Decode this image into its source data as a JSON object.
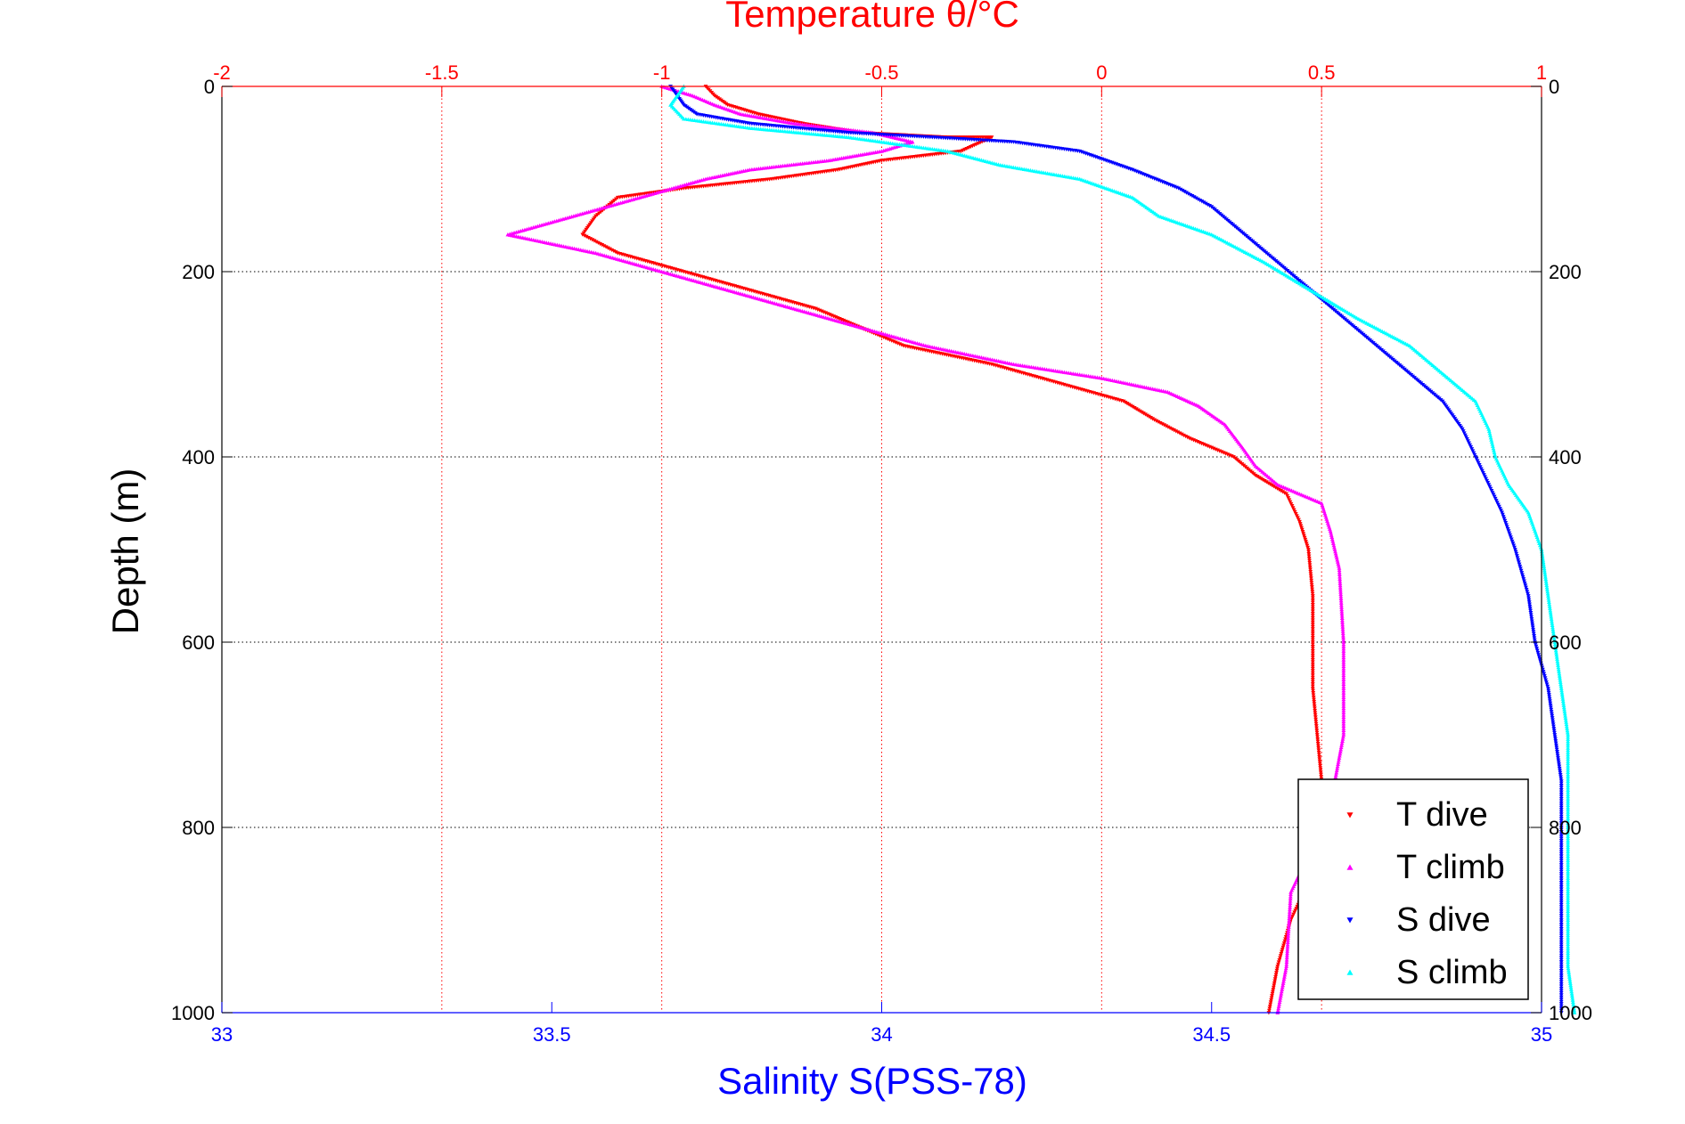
{
  "chart_data": {
    "type": "scatter",
    "top_axis": {
      "label": "Temperature θ/°C",
      "range": [
        -2,
        1
      ],
      "ticks": [
        "-2",
        "-1.5",
        "-1",
        "-0.5",
        "0",
        "0.5",
        "1"
      ],
      "color": "#ff0000"
    },
    "bottom_axis": {
      "label": "Salinity S(PSS-78)",
      "range": [
        33,
        35
      ],
      "ticks": [
        "33",
        "33.5",
        "34",
        "34.5",
        "35"
      ],
      "color": "#0000ff"
    },
    "y_axis": {
      "label": "Depth (m)",
      "range": [
        0,
        1000
      ],
      "reversed": true,
      "ticks": [
        "0",
        "200",
        "400",
        "600",
        "800",
        "1000"
      ],
      "color": "#000000"
    },
    "grid": true,
    "legend": {
      "position": "bottom-right",
      "entries": [
        "T dive",
        "T climb",
        "S dive",
        "S climb"
      ]
    },
    "series": [
      {
        "name": "T dive",
        "axis": "top",
        "color": "#ff0000",
        "marker": "triangle-down",
        "points": [
          [
            -0.9,
            0
          ],
          [
            -0.88,
            10
          ],
          [
            -0.85,
            20
          ],
          [
            -0.78,
            30
          ],
          [
            -0.68,
            40
          ],
          [
            -0.55,
            50
          ],
          [
            -0.35,
            55
          ],
          [
            -0.25,
            55
          ],
          [
            -0.32,
            70
          ],
          [
            -0.5,
            80
          ],
          [
            -0.6,
            90
          ],
          [
            -0.75,
            100
          ],
          [
            -0.95,
            110
          ],
          [
            -1.1,
            120
          ],
          [
            -1.15,
            140
          ],
          [
            -1.18,
            160
          ],
          [
            -1.1,
            180
          ],
          [
            -0.95,
            200
          ],
          [
            -0.8,
            220
          ],
          [
            -0.65,
            240
          ],
          [
            -0.55,
            260
          ],
          [
            -0.45,
            280
          ],
          [
            -0.25,
            300
          ],
          [
            -0.1,
            320
          ],
          [
            0.05,
            340
          ],
          [
            0.12,
            360
          ],
          [
            0.2,
            380
          ],
          [
            0.3,
            400
          ],
          [
            0.35,
            420
          ],
          [
            0.42,
            440
          ],
          [
            0.45,
            470
          ],
          [
            0.47,
            500
          ],
          [
            0.48,
            550
          ],
          [
            0.48,
            600
          ],
          [
            0.48,
            650
          ],
          [
            0.49,
            700
          ],
          [
            0.5,
            750
          ],
          [
            0.5,
            800
          ],
          [
            0.48,
            850
          ],
          [
            0.43,
            900
          ],
          [
            0.4,
            950
          ],
          [
            0.38,
            1000
          ]
        ]
      },
      {
        "name": "T climb",
        "axis": "top",
        "color": "#ff00ff",
        "marker": "triangle-up",
        "points": [
          [
            -1.0,
            0
          ],
          [
            -0.93,
            10
          ],
          [
            -0.88,
            20
          ],
          [
            -0.82,
            30
          ],
          [
            -0.7,
            40
          ],
          [
            -0.52,
            50
          ],
          [
            -0.43,
            60
          ],
          [
            -0.5,
            70
          ],
          [
            -0.62,
            80
          ],
          [
            -0.8,
            90
          ],
          [
            -0.9,
            100
          ],
          [
            -1.05,
            120
          ],
          [
            -1.2,
            140
          ],
          [
            -1.35,
            160
          ],
          [
            -1.15,
            180
          ],
          [
            -1.0,
            200
          ],
          [
            -0.85,
            220
          ],
          [
            -0.7,
            240
          ],
          [
            -0.55,
            260
          ],
          [
            -0.4,
            280
          ],
          [
            -0.2,
            300
          ],
          [
            0.0,
            315
          ],
          [
            0.15,
            330
          ],
          [
            0.22,
            345
          ],
          [
            0.28,
            365
          ],
          [
            0.32,
            390
          ],
          [
            0.35,
            410
          ],
          [
            0.4,
            430
          ],
          [
            0.5,
            450
          ],
          [
            0.52,
            480
          ],
          [
            0.54,
            520
          ],
          [
            0.55,
            600
          ],
          [
            0.55,
            700
          ],
          [
            0.53,
            750
          ],
          [
            0.5,
            800
          ],
          [
            0.43,
            870
          ],
          [
            0.42,
            950
          ],
          [
            0.4,
            1000
          ]
        ]
      },
      {
        "name": "S dive",
        "axis": "bottom",
        "color": "#0000ff",
        "marker": "triangle-down",
        "points": [
          [
            33.68,
            0
          ],
          [
            33.69,
            10
          ],
          [
            33.7,
            20
          ],
          [
            33.72,
            30
          ],
          [
            33.8,
            40
          ],
          [
            33.95,
            50
          ],
          [
            34.08,
            55
          ],
          [
            34.2,
            60
          ],
          [
            34.3,
            70
          ],
          [
            34.38,
            90
          ],
          [
            34.45,
            110
          ],
          [
            34.5,
            130
          ],
          [
            34.55,
            160
          ],
          [
            34.6,
            190
          ],
          [
            34.65,
            220
          ],
          [
            34.7,
            250
          ],
          [
            34.75,
            280
          ],
          [
            34.8,
            310
          ],
          [
            34.85,
            340
          ],
          [
            34.88,
            370
          ],
          [
            34.9,
            400
          ],
          [
            34.92,
            430
          ],
          [
            34.94,
            460
          ],
          [
            34.96,
            500
          ],
          [
            34.98,
            550
          ],
          [
            34.99,
            600
          ],
          [
            35.01,
            650
          ],
          [
            35.02,
            700
          ],
          [
            35.03,
            750
          ],
          [
            35.03,
            800
          ],
          [
            35.03,
            850
          ],
          [
            35.03,
            900
          ],
          [
            35.03,
            950
          ],
          [
            35.03,
            1000
          ]
        ]
      },
      {
        "name": "S climb",
        "axis": "bottom",
        "color": "#00ffff",
        "marker": "triangle-up",
        "points": [
          [
            33.7,
            0
          ],
          [
            33.69,
            10
          ],
          [
            33.68,
            20
          ],
          [
            33.7,
            35
          ],
          [
            33.8,
            45
          ],
          [
            33.95,
            55
          ],
          [
            34.1,
            70
          ],
          [
            34.18,
            85
          ],
          [
            34.3,
            100
          ],
          [
            34.38,
            120
          ],
          [
            34.42,
            140
          ],
          [
            34.5,
            160
          ],
          [
            34.58,
            190
          ],
          [
            34.65,
            220
          ],
          [
            34.72,
            250
          ],
          [
            34.8,
            280
          ],
          [
            34.85,
            310
          ],
          [
            34.9,
            340
          ],
          [
            34.92,
            370
          ],
          [
            34.93,
            400
          ],
          [
            34.95,
            430
          ],
          [
            34.98,
            460
          ],
          [
            35.0,
            500
          ],
          [
            35.01,
            550
          ],
          [
            35.02,
            600
          ],
          [
            35.03,
            650
          ],
          [
            35.04,
            700
          ],
          [
            35.04,
            750
          ],
          [
            35.04,
            800
          ],
          [
            35.04,
            850
          ],
          [
            35.04,
            900
          ],
          [
            35.04,
            950
          ],
          [
            35.05,
            1000
          ]
        ]
      }
    ]
  }
}
